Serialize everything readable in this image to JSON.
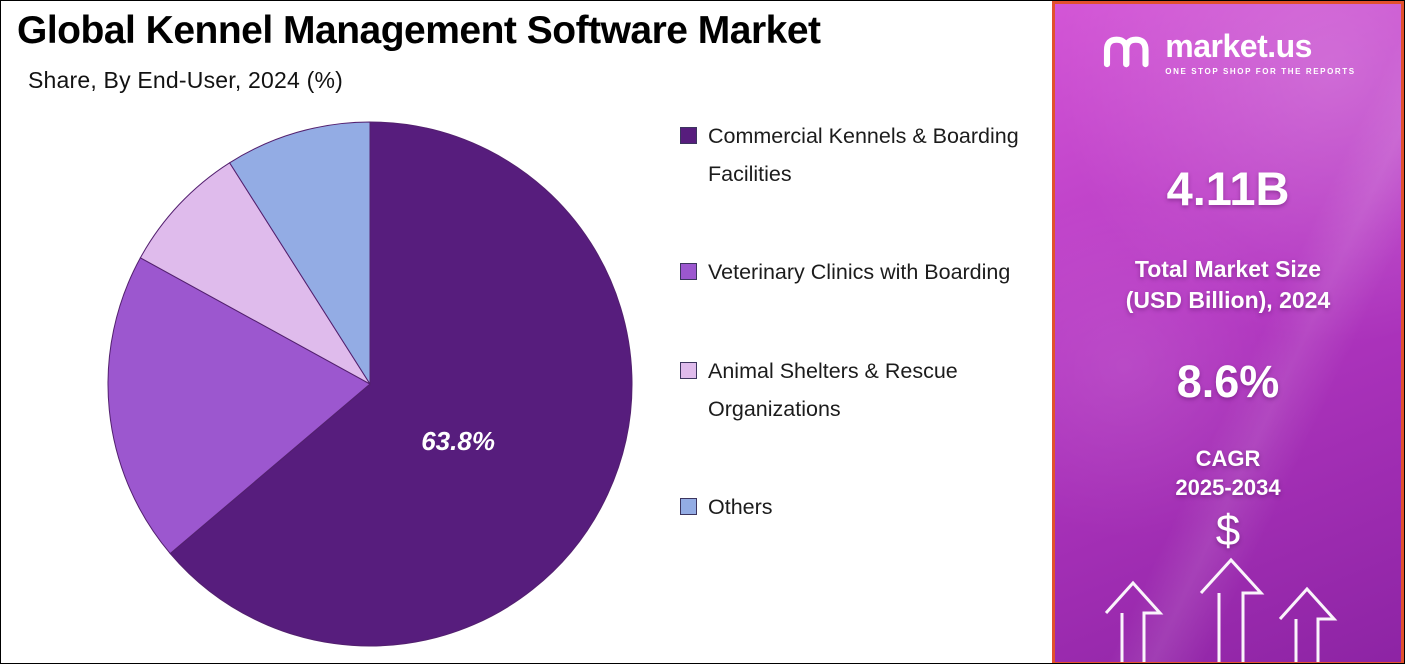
{
  "header": {
    "title": "Global Kennel Management Software Market",
    "subtitle": "Share, By End-User, 2024 (%)"
  },
  "chart_data": {
    "type": "pie",
    "title": "Global Kennel Management Software Market",
    "subtitle": "Share, By End-User, 2024 (%)",
    "unit": "%",
    "start_angle": "12 o'clock",
    "direction": "clockwise",
    "legend_position": "right",
    "slices": [
      {
        "label": "Commercial Kennels & Boarding Facilities",
        "value": 63.8,
        "color": "#571d7d",
        "data_label": "63.8%"
      },
      {
        "label": "Veterinary Clinics with Boarding",
        "value": 19.2,
        "color": "#9c57cf",
        "data_label": ""
      },
      {
        "label": "Animal Shelters & Rescue Organizations",
        "value": 8.0,
        "color": "#dfbbec",
        "data_label": ""
      },
      {
        "label": "Others",
        "value": 9.0,
        "color": "#93ace4",
        "data_label": ""
      }
    ]
  },
  "side_panel": {
    "logo_text": "market.us",
    "logo_tagline": "ONE STOP SHOP FOR THE REPORTS",
    "market_size_value": "4.11B",
    "market_size_label_line1": "Total Market Size",
    "market_size_label_line2": "(USD Billion), 2024",
    "cagr_value": "8.6%",
    "cagr_label_line1": "CAGR",
    "cagr_label_line2": "2025-2034",
    "dollar_symbol": "$",
    "colors": {
      "border": "#e2512d",
      "gradient_top": "#d356d6",
      "gradient_mid": "#b437c2",
      "gradient_bottom": "#8d24a4",
      "text": "#ffffff"
    }
  }
}
